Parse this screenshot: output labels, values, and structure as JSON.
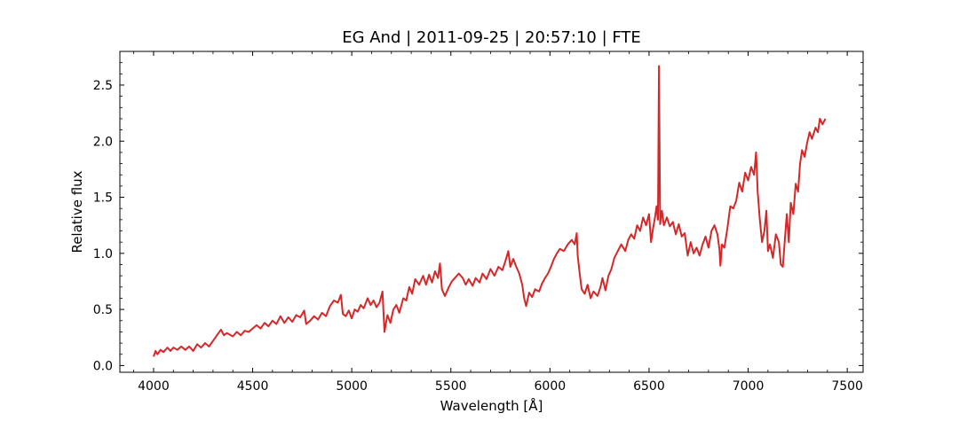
{
  "chart_data": {
    "type": "line",
    "title": "EG And | 2011-09-25 | 20:57:10 | FTE",
    "xlabel": "Wavelength [Å]",
    "ylabel": "Relative flux",
    "xlim": [
      3830,
      7580
    ],
    "ylim": [
      -0.06,
      2.8
    ],
    "x_ticks": [
      4000,
      4500,
      5000,
      5500,
      6000,
      6500,
      7000,
      7500
    ],
    "x_tick_labels": [
      "4000",
      "4500",
      "5000",
      "5500",
      "6000",
      "6500",
      "7000",
      "7500"
    ],
    "y_ticks": [
      0.0,
      0.5,
      1.0,
      1.5,
      2.0,
      2.5
    ],
    "y_tick_labels": [
      "0.0",
      "0.5",
      "1.0",
      "1.5",
      "2.0",
      "2.5"
    ],
    "grid": false,
    "legend": "none",
    "series": [
      {
        "color": "#d62728",
        "points": [
          [
            4000,
            0.08
          ],
          [
            4010,
            0.13
          ],
          [
            4020,
            0.1
          ],
          [
            4035,
            0.14
          ],
          [
            4050,
            0.12
          ],
          [
            4070,
            0.16
          ],
          [
            4085,
            0.13
          ],
          [
            4100,
            0.16
          ],
          [
            4120,
            0.14
          ],
          [
            4140,
            0.17
          ],
          [
            4160,
            0.14
          ],
          [
            4180,
            0.17
          ],
          [
            4200,
            0.13
          ],
          [
            4220,
            0.19
          ],
          [
            4240,
            0.16
          ],
          [
            4260,
            0.2
          ],
          [
            4280,
            0.17
          ],
          [
            4300,
            0.22
          ],
          [
            4320,
            0.27
          ],
          [
            4340,
            0.32
          ],
          [
            4355,
            0.27
          ],
          [
            4370,
            0.29
          ],
          [
            4400,
            0.26
          ],
          [
            4420,
            0.3
          ],
          [
            4440,
            0.27
          ],
          [
            4460,
            0.31
          ],
          [
            4480,
            0.3
          ],
          [
            4500,
            0.33
          ],
          [
            4520,
            0.36
          ],
          [
            4540,
            0.33
          ],
          [
            4560,
            0.38
          ],
          [
            4580,
            0.35
          ],
          [
            4600,
            0.4
          ],
          [
            4620,
            0.37
          ],
          [
            4640,
            0.44
          ],
          [
            4660,
            0.38
          ],
          [
            4680,
            0.43
          ],
          [
            4700,
            0.39
          ],
          [
            4720,
            0.45
          ],
          [
            4740,
            0.43
          ],
          [
            4760,
            0.49
          ],
          [
            4770,
            0.37
          ],
          [
            4790,
            0.4
          ],
          [
            4810,
            0.44
          ],
          [
            4830,
            0.41
          ],
          [
            4850,
            0.47
          ],
          [
            4870,
            0.44
          ],
          [
            4890,
            0.53
          ],
          [
            4910,
            0.58
          ],
          [
            4930,
            0.56
          ],
          [
            4945,
            0.63
          ],
          [
            4955,
            0.46
          ],
          [
            4970,
            0.44
          ],
          [
            4985,
            0.49
          ],
          [
            5000,
            0.42
          ],
          [
            5015,
            0.5
          ],
          [
            5030,
            0.48
          ],
          [
            5045,
            0.54
          ],
          [
            5060,
            0.51
          ],
          [
            5080,
            0.6
          ],
          [
            5095,
            0.54
          ],
          [
            5110,
            0.58
          ],
          [
            5125,
            0.52
          ],
          [
            5140,
            0.56
          ],
          [
            5155,
            0.66
          ],
          [
            5165,
            0.3
          ],
          [
            5180,
            0.45
          ],
          [
            5195,
            0.38
          ],
          [
            5210,
            0.5
          ],
          [
            5225,
            0.54
          ],
          [
            5240,
            0.47
          ],
          [
            5260,
            0.6
          ],
          [
            5275,
            0.58
          ],
          [
            5290,
            0.7
          ],
          [
            5305,
            0.64
          ],
          [
            5320,
            0.77
          ],
          [
            5340,
            0.72
          ],
          [
            5360,
            0.8
          ],
          [
            5375,
            0.72
          ],
          [
            5390,
            0.81
          ],
          [
            5405,
            0.74
          ],
          [
            5420,
            0.84
          ],
          [
            5435,
            0.78
          ],
          [
            5445,
            0.91
          ],
          [
            5455,
            0.68
          ],
          [
            5470,
            0.62
          ],
          [
            5490,
            0.7
          ],
          [
            5505,
            0.75
          ],
          [
            5520,
            0.78
          ],
          [
            5540,
            0.82
          ],
          [
            5560,
            0.78
          ],
          [
            5575,
            0.72
          ],
          [
            5590,
            0.77
          ],
          [
            5610,
            0.71
          ],
          [
            5625,
            0.78
          ],
          [
            5645,
            0.74
          ],
          [
            5660,
            0.82
          ],
          [
            5680,
            0.77
          ],
          [
            5700,
            0.86
          ],
          [
            5720,
            0.8
          ],
          [
            5740,
            0.88
          ],
          [
            5760,
            0.85
          ],
          [
            5775,
            0.93
          ],
          [
            5790,
            1.02
          ],
          [
            5800,
            0.88
          ],
          [
            5815,
            0.95
          ],
          [
            5830,
            0.88
          ],
          [
            5845,
            0.82
          ],
          [
            5860,
            0.72
          ],
          [
            5870,
            0.6
          ],
          [
            5880,
            0.53
          ],
          [
            5895,
            0.65
          ],
          [
            5910,
            0.61
          ],
          [
            5925,
            0.68
          ],
          [
            5945,
            0.66
          ],
          [
            5960,
            0.73
          ],
          [
            5975,
            0.78
          ],
          [
            5990,
            0.82
          ],
          [
            6005,
            0.88
          ],
          [
            6020,
            0.95
          ],
          [
            6035,
            1.0
          ],
          [
            6050,
            1.04
          ],
          [
            6070,
            1.02
          ],
          [
            6090,
            1.08
          ],
          [
            6110,
            1.12
          ],
          [
            6125,
            1.08
          ],
          [
            6135,
            1.18
          ],
          [
            6140,
            0.98
          ],
          [
            6150,
            0.82
          ],
          [
            6160,
            0.68
          ],
          [
            6175,
            0.64
          ],
          [
            6190,
            0.72
          ],
          [
            6205,
            0.6
          ],
          [
            6220,
            0.66
          ],
          [
            6240,
            0.62
          ],
          [
            6255,
            0.7
          ],
          [
            6265,
            0.78
          ],
          [
            6280,
            0.67
          ],
          [
            6295,
            0.8
          ],
          [
            6310,
            0.86
          ],
          [
            6325,
            0.96
          ],
          [
            6345,
            1.03
          ],
          [
            6360,
            1.08
          ],
          [
            6380,
            1.02
          ],
          [
            6395,
            1.12
          ],
          [
            6410,
            1.17
          ],
          [
            6425,
            1.13
          ],
          [
            6440,
            1.25
          ],
          [
            6455,
            1.2
          ],
          [
            6470,
            1.32
          ],
          [
            6485,
            1.25
          ],
          [
            6500,
            1.35
          ],
          [
            6510,
            1.1
          ],
          [
            6520,
            1.22
          ],
          [
            6530,
            1.32
          ],
          [
            6538,
            1.42
          ],
          [
            6545,
            1.3
          ],
          [
            6550,
            2.67
          ],
          [
            6556,
            1.26
          ],
          [
            6565,
            1.38
          ],
          [
            6575,
            1.25
          ],
          [
            6590,
            1.32
          ],
          [
            6605,
            1.24
          ],
          [
            6620,
            1.28
          ],
          [
            6635,
            1.17
          ],
          [
            6650,
            1.26
          ],
          [
            6665,
            1.15
          ],
          [
            6680,
            1.18
          ],
          [
            6695,
            0.98
          ],
          [
            6710,
            1.1
          ],
          [
            6725,
            1.0
          ],
          [
            6740,
            1.05
          ],
          [
            6755,
            0.98
          ],
          [
            6770,
            1.08
          ],
          [
            6785,
            1.15
          ],
          [
            6800,
            1.05
          ],
          [
            6815,
            1.2
          ],
          [
            6830,
            1.25
          ],
          [
            6845,
            1.17
          ],
          [
            6855,
            1.04
          ],
          [
            6860,
            0.89
          ],
          [
            6868,
            1.08
          ],
          [
            6880,
            1.05
          ],
          [
            6895,
            1.22
          ],
          [
            6910,
            1.42
          ],
          [
            6925,
            1.4
          ],
          [
            6940,
            1.47
          ],
          [
            6955,
            1.63
          ],
          [
            6970,
            1.55
          ],
          [
            6985,
            1.72
          ],
          [
            7000,
            1.65
          ],
          [
            7015,
            1.77
          ],
          [
            7030,
            1.7
          ],
          [
            7040,
            1.9
          ],
          [
            7048,
            1.55
          ],
          [
            7058,
            1.32
          ],
          [
            7070,
            1.1
          ],
          [
            7082,
            1.2
          ],
          [
            7092,
            1.38
          ],
          [
            7100,
            1.02
          ],
          [
            7110,
            1.08
          ],
          [
            7125,
            0.96
          ],
          [
            7140,
            1.17
          ],
          [
            7155,
            1.1
          ],
          [
            7165,
            0.9
          ],
          [
            7175,
            0.88
          ],
          [
            7185,
            1.12
          ],
          [
            7195,
            1.35
          ],
          [
            7205,
            1.1
          ],
          [
            7215,
            1.45
          ],
          [
            7228,
            1.35
          ],
          [
            7240,
            1.62
          ],
          [
            7252,
            1.55
          ],
          [
            7262,
            1.8
          ],
          [
            7272,
            1.92
          ],
          [
            7285,
            1.86
          ],
          [
            7297,
            1.98
          ],
          [
            7310,
            2.08
          ],
          [
            7322,
            2.02
          ],
          [
            7340,
            2.12
          ],
          [
            7352,
            2.08
          ],
          [
            7362,
            2.2
          ],
          [
            7375,
            2.15
          ],
          [
            7390,
            2.2
          ]
        ]
      }
    ]
  }
}
